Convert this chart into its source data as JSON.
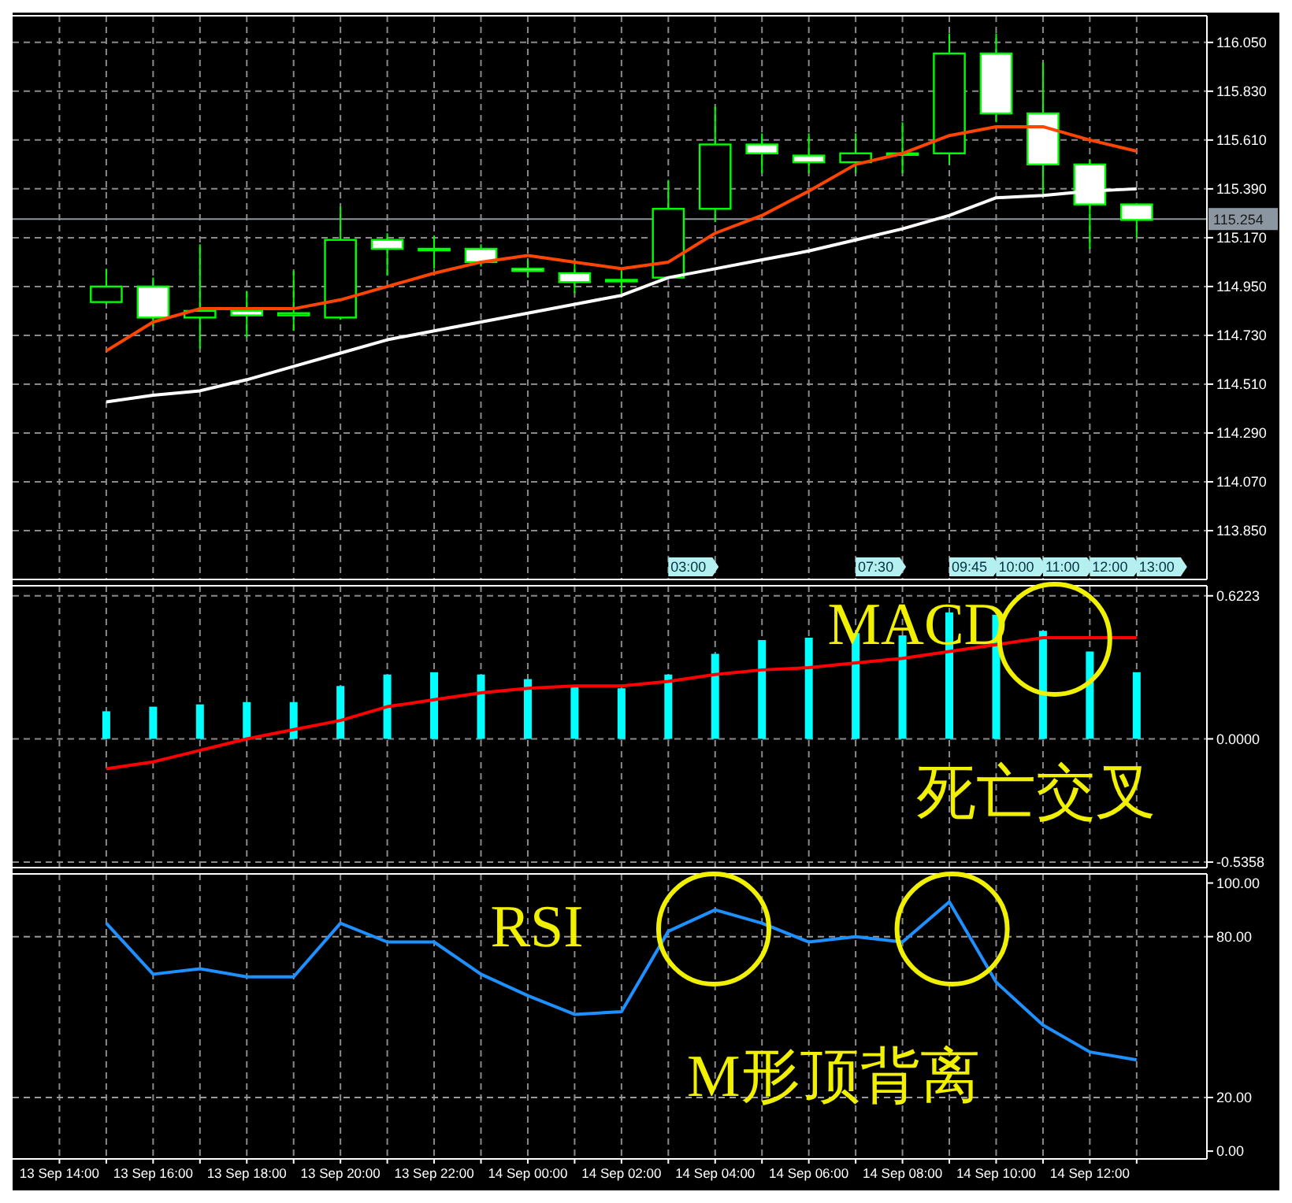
{
  "chart_data": [
    {
      "type": "candlestick",
      "color": "#00ff00",
      "ohlc": [
        null,
        [
          114.88,
          115.03,
          114.87,
          114.95
        ],
        [
          114.95,
          114.99,
          114.77,
          114.81
        ],
        [
          114.81,
          115.14,
          114.67,
          114.84
        ],
        [
          114.84,
          114.93,
          114.72,
          114.82
        ],
        [
          114.82,
          115.02,
          114.75,
          114.83
        ],
        [
          114.81,
          115.31,
          114.8,
          115.16
        ],
        [
          115.16,
          115.19,
          115.0,
          115.12
        ],
        [
          115.12,
          115.18,
          115.03,
          115.12
        ],
        [
          115.12,
          115.14,
          115.04,
          115.06
        ],
        [
          115.03,
          115.07,
          114.99,
          115.02
        ],
        [
          115.01,
          115.05,
          114.92,
          114.97
        ],
        [
          114.98,
          115.02,
          114.92,
          114.98
        ],
        [
          114.99,
          115.43,
          114.98,
          115.3
        ],
        [
          115.3,
          115.76,
          115.24,
          115.59
        ],
        [
          115.59,
          115.64,
          115.46,
          115.55
        ],
        [
          115.54,
          115.64,
          115.46,
          115.51
        ],
        [
          115.51,
          115.64,
          115.46,
          115.55
        ],
        [
          115.55,
          115.69,
          115.46,
          115.55
        ],
        [
          115.55,
          116.09,
          115.5,
          116.0
        ],
        [
          116.0,
          116.09,
          115.69,
          115.73
        ],
        [
          115.73,
          115.96,
          115.36,
          115.5
        ],
        [
          115.5,
          115.52,
          115.12,
          115.32
        ],
        [
          115.32,
          115.32,
          115.17,
          115.25
        ]
      ],
      "series": [
        {
          "type": "line",
          "color": "#ff4500",
          "values": [
            null,
            114.66,
            114.79,
            114.85,
            114.85,
            114.85,
            114.89,
            114.95,
            115.01,
            115.06,
            115.09,
            115.06,
            115.03,
            115.06,
            115.19,
            115.27,
            115.38,
            115.5,
            115.55,
            115.63,
            115.67,
            115.67,
            115.61,
            115.56
          ]
        },
        {
          "type": "line",
          "color": "#ffffff",
          "values": [
            null,
            114.43,
            114.46,
            114.48,
            114.53,
            114.59,
            114.65,
            114.71,
            114.75,
            114.79,
            114.83,
            114.87,
            114.91,
            114.99,
            115.03,
            115.07,
            115.11,
            115.16,
            115.21,
            115.27,
            115.35,
            115.36,
            115.38,
            115.39
          ]
        }
      ],
      "ylim": [
        113.63,
        116.17
      ],
      "yticks": [
        {
          "value": 113.85,
          "label": "113.850"
        },
        {
          "value": 114.07,
          "label": "114.070"
        },
        {
          "value": 114.29,
          "label": "114.290"
        },
        {
          "value": 114.51,
          "label": "114.510"
        },
        {
          "value": 114.73,
          "label": "114.730"
        },
        {
          "value": 114.95,
          "label": "114.950"
        },
        {
          "value": 115.17,
          "label": "115.170"
        },
        {
          "value": 115.39,
          "label": "115.390"
        },
        {
          "value": 115.61,
          "label": "115.610"
        },
        {
          "value": 115.83,
          "label": "115.830"
        },
        {
          "value": 116.05,
          "label": "116.050"
        }
      ],
      "ref_lines": [
        {
          "axis": "y",
          "value": 115.254,
          "label": "115.254",
          "color": "#8c96a0"
        }
      ],
      "annotations": [
        "03:00",
        "07:30",
        "09:45",
        "10:00",
        "11:00",
        "12:00",
        "13:00"
      ],
      "grid": true,
      "tick_labels": "y"
    },
    {
      "type": "bar",
      "series": [
        {
          "color": "#00ffff",
          "values": [
            null,
            0.12,
            0.14,
            0.15,
            0.16,
            0.16,
            0.23,
            0.28,
            0.29,
            0.28,
            0.26,
            0.23,
            0.22,
            0.28,
            0.37,
            0.43,
            0.44,
            0.46,
            0.45,
            0.55,
            0.54,
            0.47,
            0.38,
            0.29
          ]
        },
        {
          "type": "line",
          "color": "#ff0000",
          "values": [
            null,
            -0.13,
            -0.1,
            -0.05,
            0.0,
            0.04,
            0.08,
            0.14,
            0.17,
            0.2,
            0.22,
            0.23,
            0.23,
            0.25,
            0.28,
            0.3,
            0.31,
            0.33,
            0.35,
            0.38,
            0.41,
            0.44,
            0.44,
            0.44
          ]
        }
      ],
      "ylim": [
        -0.56,
        0.666
      ],
      "yticks": [
        {
          "value": -0.5358,
          "label": "-0.5358"
        },
        {
          "value": 0,
          "label": "0.0000"
        },
        {
          "value": 0.6223,
          "label": "0.6223"
        }
      ],
      "annotations": [
        "MACD",
        "死亡交叉"
      ],
      "grid": true,
      "tick_labels": "y"
    },
    {
      "type": "line",
      "categories": [
        "13 Sep 14:00",
        null,
        "13 Sep 16:00",
        null,
        "13 Sep 18:00",
        null,
        "13 Sep 20:00",
        null,
        "13 Sep 22:00",
        null,
        "14 Sep 00:00",
        null,
        "14 Sep 02:00",
        null,
        "14 Sep 04:00",
        null,
        "14 Sep 06:00",
        null,
        "14 Sep 08:00",
        null,
        "14 Sep 10:00",
        null,
        "14 Sep 12:00",
        null
      ],
      "series": [
        {
          "color": "#1e90ff",
          "values": [
            null,
            85,
            66,
            68,
            65,
            65,
            85,
            78,
            78,
            66,
            58,
            51,
            52,
            82,
            90,
            85,
            78,
            80,
            78,
            93,
            63,
            47,
            37,
            34
          ]
        }
      ],
      "ylim": [
        -2.9,
        103.4
      ],
      "yticks": [
        {
          "value": 0,
          "label": "0.00"
        },
        {
          "value": 20,
          "label": "20.00"
        },
        {
          "value": 80,
          "label": "80.00"
        },
        {
          "value": 100,
          "label": "100.00"
        }
      ],
      "ref_lines": [
        {
          "axis": "y",
          "value": 80,
          "color": "#9a9a9a",
          "line_style": "dashed"
        },
        {
          "axis": "y",
          "value": 20,
          "color": "#9a9a9a",
          "line_style": "dashed"
        }
      ],
      "annotations": [
        "RSI",
        "M形顶背离"
      ],
      "grid": "x"
    }
  ]
}
